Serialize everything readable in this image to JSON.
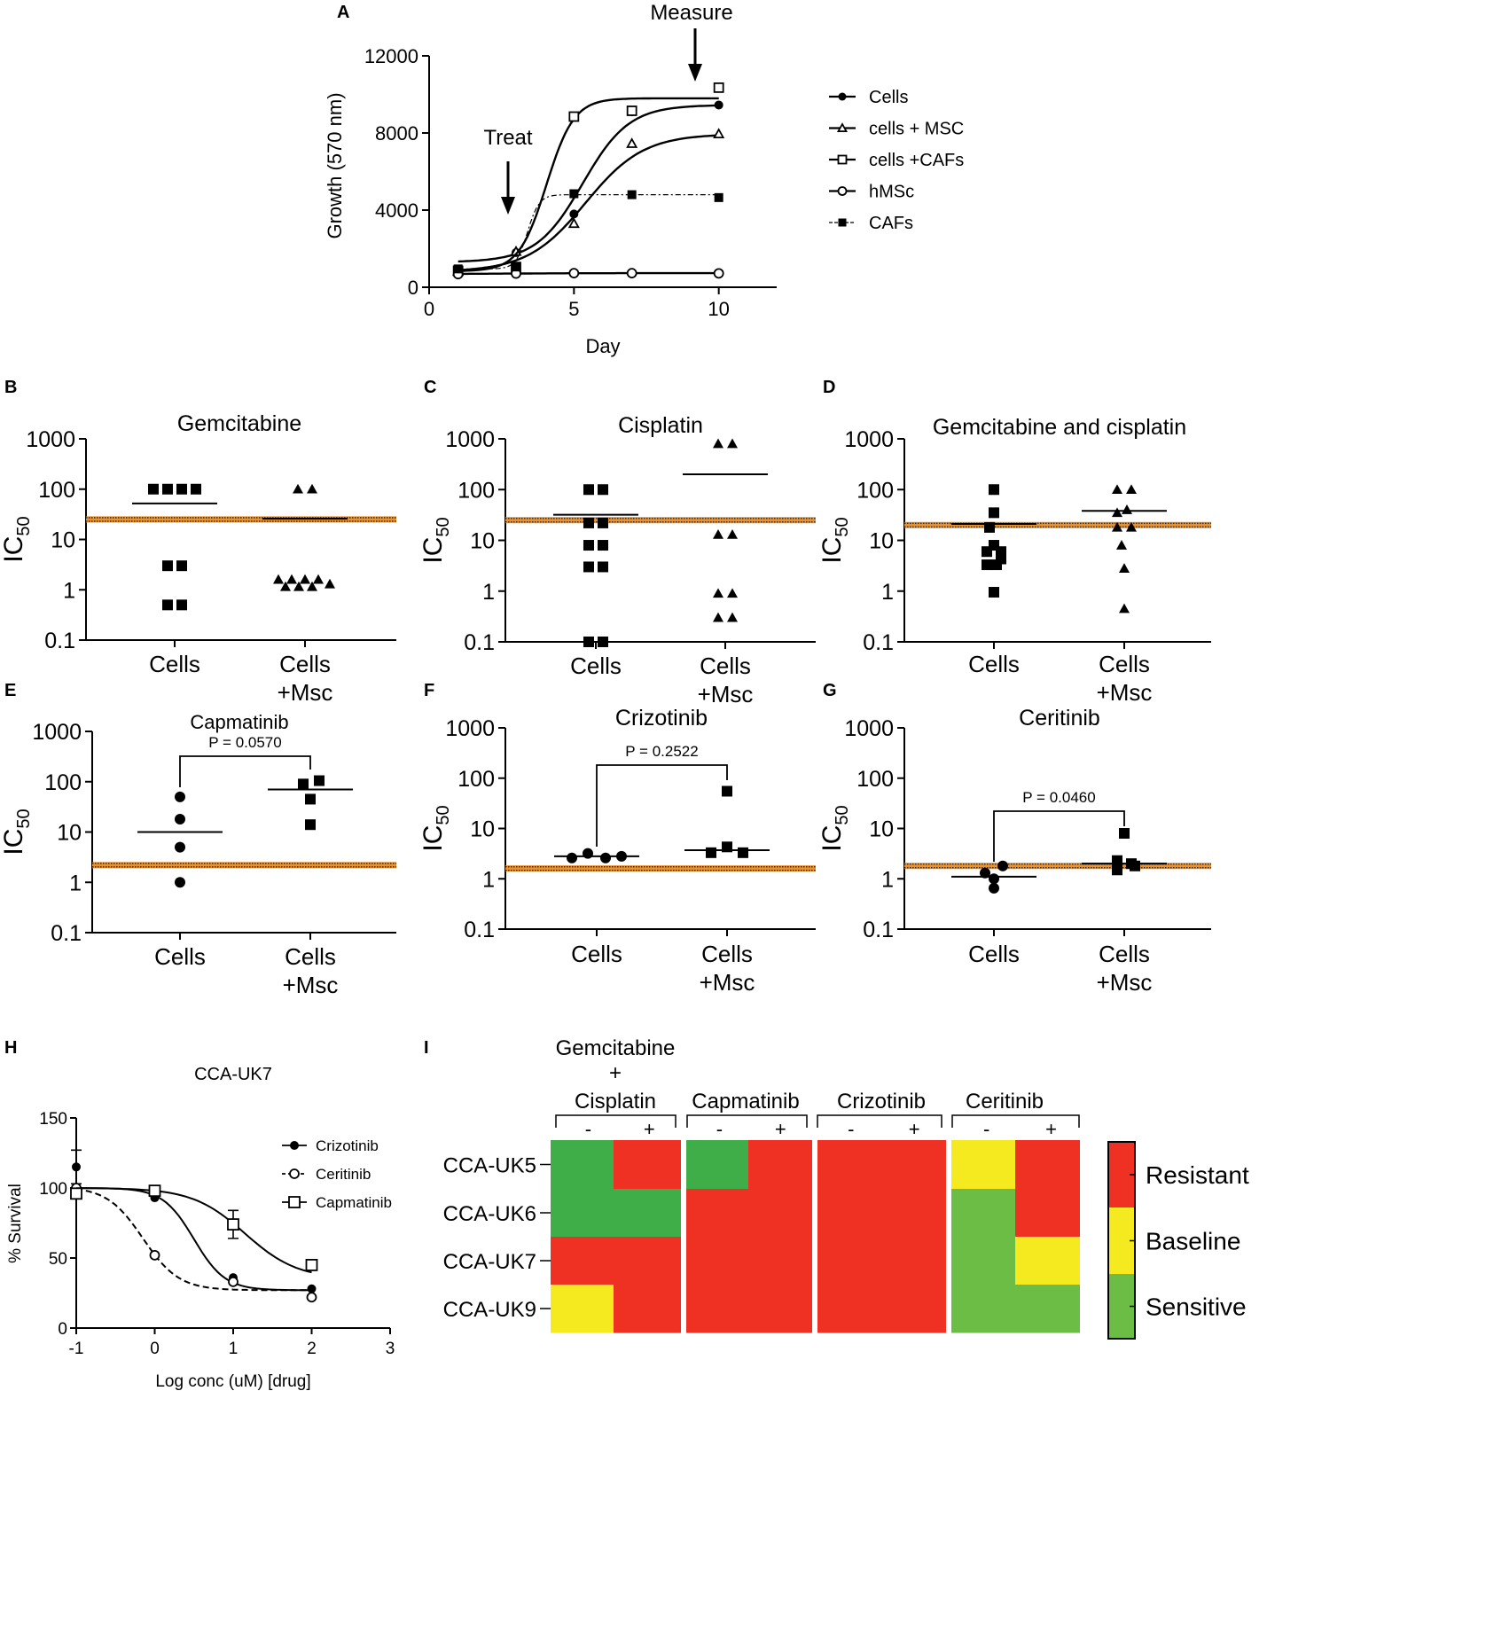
{
  "chart_data": {
    "A": {
      "letter": "A",
      "type": "line",
      "xlabel": "Day",
      "ylabel": "Growth (570 nm)",
      "xlim": [
        0,
        12
      ],
      "ylim": [
        0,
        12000
      ],
      "xticks": [
        "0",
        "5",
        "10"
      ],
      "yticks": [
        "0",
        "4000",
        "8000",
        "12000"
      ],
      "annotations": {
        "treat": "Treat",
        "measure": "Measure"
      },
      "series": [
        {
          "name": "Cells",
          "marker": "filled-circle",
          "x": [
            1,
            3,
            5,
            7,
            10
          ],
          "y": [
            850,
            1800,
            3800,
            9100,
            9450
          ]
        },
        {
          "name": "cells + MSC",
          "marker": "open-triangle",
          "x": [
            1,
            3,
            5,
            7,
            10
          ],
          "y": [
            820,
            1850,
            3300,
            7450,
            7950
          ]
        },
        {
          "name": "cells +CAFs",
          "marker": "open-square",
          "x": [
            1,
            3,
            5,
            7,
            10
          ],
          "y": [
            850,
            1050,
            8850,
            9150,
            10350
          ]
        },
        {
          "name": "hMSc",
          "marker": "open-circle",
          "x": [
            1,
            3,
            5,
            7,
            10
          ],
          "y": [
            680,
            710,
            730,
            730,
            720
          ]
        },
        {
          "name": "CAFs",
          "marker": "filled-square",
          "x": [
            1,
            3,
            5,
            7,
            10
          ],
          "y": [
            950,
            1050,
            4850,
            4800,
            4650
          ]
        }
      ]
    },
    "B": {
      "letter": "B",
      "type": "scatter",
      "title": "Gemcitabine",
      "ylabel": "IC",
      "ylabel_sub": "50",
      "yticks": [
        "0.1",
        "1",
        "10",
        "100",
        "1000"
      ],
      "categories": [
        "Cells",
        "Cells",
        "+Msc"
      ],
      "ref_line": 25,
      "group1": {
        "marker": "square",
        "points": [
          [
            -24,
            100
          ],
          [
            -8,
            100
          ],
          [
            8,
            100
          ],
          [
            24,
            100
          ],
          [
            -8,
            3
          ],
          [
            8,
            3
          ],
          [
            -8,
            0.5
          ],
          [
            8,
            0.5
          ]
        ],
        "mean": 52
      },
      "group2": {
        "marker": "triangle",
        "points": [
          [
            -8,
            100
          ],
          [
            8,
            100
          ],
          [
            -30,
            1.6
          ],
          [
            -15,
            1.6
          ],
          [
            0,
            1.6
          ],
          [
            15,
            1.6
          ],
          [
            -22,
            1.15
          ],
          [
            -7,
            1.15
          ],
          [
            8,
            1.15
          ],
          [
            28,
            1.3
          ]
        ],
        "mean": 26
      }
    },
    "C": {
      "letter": "C",
      "type": "scatter",
      "title": "Cisplatin",
      "ylabel": "IC",
      "ylabel_sub": "50",
      "yticks": [
        "0.1",
        "1",
        "10",
        "100",
        "1000"
      ],
      "categories": [
        "Cells",
        "Cells",
        "+Msc"
      ],
      "ref_line": 25,
      "group1": {
        "marker": "square",
        "points": [
          [
            -8,
            100
          ],
          [
            8,
            100
          ],
          [
            -8,
            22
          ],
          [
            8,
            22
          ],
          [
            -8,
            8
          ],
          [
            8,
            8
          ],
          [
            -8,
            3
          ],
          [
            8,
            3
          ],
          [
            -8,
            0.1
          ],
          [
            8,
            0.1
          ]
        ],
        "mean": 32
      },
      "group2": {
        "marker": "triangle",
        "points": [
          [
            -8,
            800
          ],
          [
            8,
            800
          ],
          [
            -8,
            13
          ],
          [
            8,
            13
          ],
          [
            -8,
            0.9
          ],
          [
            8,
            0.9
          ],
          [
            -8,
            0.3
          ],
          [
            8,
            0.3
          ]
        ],
        "mean": 200
      }
    },
    "D": {
      "letter": "D",
      "type": "scatter",
      "title": "Gemcitabine and cisplatin",
      "ylabel": "IC",
      "ylabel_sub": "50",
      "yticks": [
        "0.1",
        "1",
        "10",
        "100",
        "1000"
      ],
      "categories": [
        "Cells",
        "Cells",
        "+Msc"
      ],
      "ref_line": 20,
      "group1": {
        "marker": "square",
        "points": [
          [
            0,
            100
          ],
          [
            0,
            35
          ],
          [
            -5,
            18
          ],
          [
            0,
            8
          ],
          [
            -8,
            6
          ],
          [
            8,
            6
          ],
          [
            8,
            4.3
          ],
          [
            -8,
            3.3
          ],
          [
            3,
            3.3
          ],
          [
            0,
            0.95
          ]
        ],
        "mean": 21
      },
      "group2": {
        "marker": "triangle",
        "points": [
          [
            -8,
            100
          ],
          [
            8,
            100
          ],
          [
            3,
            40
          ],
          [
            -8,
            35
          ],
          [
            -8,
            18
          ],
          [
            8,
            18
          ],
          [
            -3,
            8
          ],
          [
            0,
            2.8
          ],
          [
            0,
            0.45
          ]
        ],
        "mean": 38
      }
    },
    "E": {
      "letter": "E",
      "type": "scatter",
      "title": "Capmatinib",
      "ylabel": "IC",
      "ylabel_sub": "50",
      "yticks": [
        "0.1",
        "1",
        "10",
        "100",
        "1000"
      ],
      "categories": [
        "Cells",
        "Cells",
        "+Msc"
      ],
      "ref_line": 2.2,
      "p_value": "P = 0.0570",
      "group1": {
        "marker": "circle",
        "points": [
          [
            0,
            50
          ],
          [
            0,
            18
          ],
          [
            0,
            5
          ],
          [
            0,
            1
          ]
        ],
        "mean": 10
      },
      "group2": {
        "marker": "square",
        "points": [
          [
            -8,
            90
          ],
          [
            10,
            105
          ],
          [
            0,
            45
          ],
          [
            0,
            14
          ]
        ],
        "mean": 70
      }
    },
    "F": {
      "letter": "F",
      "type": "scatter",
      "title": "Crizotinib",
      "ylabel": "IC",
      "ylabel_sub": "50",
      "yticks": [
        "0.1",
        "1",
        "10",
        "100",
        "1000"
      ],
      "categories": [
        "Cells",
        "Cells",
        "+Msc"
      ],
      "ref_line": 1.6,
      "p_value": "P = 0.2522",
      "group1": {
        "marker": "circle",
        "points": [
          [
            -28,
            2.6
          ],
          [
            -10,
            3.2
          ],
          [
            10,
            2.6
          ],
          [
            28,
            2.8
          ]
        ],
        "mean": 2.8
      },
      "group2": {
        "marker": "square",
        "points": [
          [
            0,
            55
          ],
          [
            -18,
            3.3
          ],
          [
            0,
            4.3
          ],
          [
            18,
            3.3
          ]
        ],
        "mean": 3.7
      }
    },
    "G": {
      "letter": "G",
      "type": "scatter",
      "title": "Ceritinib",
      "ylabel": "IC",
      "ylabel_sub": "50",
      "yticks": [
        "0.1",
        "1",
        "10",
        "100",
        "1000"
      ],
      "categories": [
        "Cells",
        "Cells",
        "+Msc"
      ],
      "ref_line": 1.8,
      "p_value": "P = 0.0460",
      "group1": {
        "marker": "circle",
        "points": [
          [
            10,
            1.8
          ],
          [
            -10,
            1.3
          ],
          [
            0,
            1.0
          ],
          [
            0,
            0.65
          ]
        ],
        "mean": 1.1
      },
      "group2": {
        "marker": "square",
        "points": [
          [
            0,
            8
          ],
          [
            -8,
            2.3
          ],
          [
            8,
            2.0
          ],
          [
            -8,
            1.5
          ],
          [
            12,
            1.8
          ]
        ],
        "mean": 2.0
      }
    },
    "H": {
      "letter": "H",
      "type": "line",
      "title": "CCA-UK7",
      "xlabel": "Log conc (uM) [drug]",
      "ylabel": "% Survival",
      "xlim": [
        -1,
        3
      ],
      "ylim": [
        0,
        150
      ],
      "xticks": [
        "-1",
        "0",
        "1",
        "2",
        "3"
      ],
      "yticks": [
        "0",
        "50",
        "100",
        "150"
      ],
      "series": [
        {
          "name": "Crizotinib",
          "marker": "filled-circle",
          "x": [
            -1,
            0,
            1,
            2
          ],
          "y": [
            115,
            93,
            36,
            28
          ],
          "error": [
            12,
            0,
            0,
            0
          ],
          "ic_log": 0.5,
          "top": 100,
          "bottom": 27,
          "hill": 2.2
        },
        {
          "name": "Ceritinib",
          "marker": "open-circle",
          "x": [
            -1,
            0,
            1,
            2
          ],
          "y": [
            100,
            52,
            33,
            22
          ],
          "error": [
            0,
            0,
            0,
            0
          ],
          "ic_log": -0.15,
          "top": 101,
          "bottom": 27,
          "hill": 1.9
        },
        {
          "name": "Capmatinib",
          "marker": "open-square",
          "x": [
            -1,
            0,
            1,
            2
          ],
          "y": [
            96,
            98,
            74,
            45
          ],
          "error": [
            0,
            0,
            10,
            0
          ],
          "ic_log": 1.15,
          "top": 100,
          "bottom": 35,
          "hill": 1.3
        }
      ]
    },
    "I": {
      "letter": "I",
      "type": "heatmap",
      "drug_header": [
        "Gemcitabine",
        "+",
        "Cisplatin"
      ],
      "drugs": [
        "Capmatinib",
        "Crizotinib",
        "Ceritinib"
      ],
      "minus": "-",
      "plus": "+",
      "rows": [
        "CCA-UK5",
        "CCA-UK6",
        "CCA-UK7",
        "CCA-UK9"
      ],
      "legend": [
        "Resistant",
        "Baseline",
        "Sensitive"
      ],
      "colors": {
        "R": "#ef3124",
        "B": "#f5ea1f",
        "S": "#6bbd45",
        "G": "#3fae49"
      },
      "cells": [
        [
          "G",
          "R",
          "G",
          "R",
          "R",
          "R",
          "B",
          "R"
        ],
        [
          "G",
          "G",
          "R",
          "R",
          "R",
          "R",
          "S",
          "R"
        ],
        [
          "R",
          "R",
          "R",
          "R",
          "R",
          "R",
          "S",
          "B"
        ],
        [
          "B",
          "R",
          "R",
          "R",
          "R",
          "R",
          "S",
          "S"
        ]
      ]
    }
  }
}
